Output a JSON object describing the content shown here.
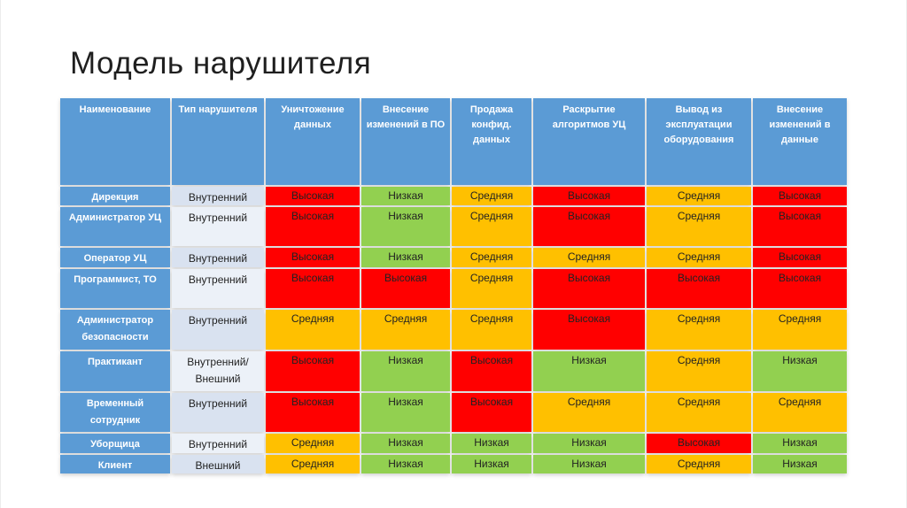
{
  "slide": {
    "title": "Модель нарушителя"
  },
  "table": {
    "columns": [
      "Наименование",
      "Тип нарушителя",
      "Уничтожение данных",
      "Внесение изменений в ПО",
      "Продажа конфид. данных",
      "Раскрытие алгоритмов УЦ",
      "Вывод из эксплуатации оборудования",
      "Внесение изменений в данные"
    ],
    "rows": [
      {
        "name": "Дирекция",
        "type": "Внутренний",
        "values": [
          "Высокая",
          "Низкая",
          "Средняя",
          "Высокая",
          "Средняя",
          "Высокая"
        ]
      },
      {
        "name": "Администратор УЦ",
        "type": "Внутренний",
        "values": [
          "Высокая",
          "Низкая",
          "Средняя",
          "Высокая",
          "Средняя",
          "Высокая"
        ]
      },
      {
        "name": "Оператор УЦ",
        "type": "Внутренний",
        "values": [
          "Высокая",
          "Низкая",
          "Средняя",
          "Средняя",
          "Средняя",
          "Высокая"
        ]
      },
      {
        "name": "Программист, ТО",
        "type": "Внутренний",
        "values": [
          "Высокая",
          "Высокая",
          "Средняя",
          "Высокая",
          "Высокая",
          "Высокая"
        ]
      },
      {
        "name": "Администратор безопасности",
        "type": "Внутренний",
        "values": [
          "Средняя",
          "Средняя",
          "Средняя",
          "Высокая",
          "Средняя",
          "Средняя"
        ]
      },
      {
        "name": "Практикант",
        "type": "Внутренний/ Внешний",
        "values": [
          "Высокая",
          "Низкая",
          "Высокая",
          "Низкая",
          "Средняя",
          "Низкая"
        ]
      },
      {
        "name": "Временный сотрудник",
        "type": "Внутренний",
        "values": [
          "Высокая",
          "Низкая",
          "Высокая",
          "Средняя",
          "Средняя",
          "Средняя"
        ]
      },
      {
        "name": "Уборщица",
        "type": "Внутренний",
        "values": [
          "Средняя",
          "Низкая",
          "Низкая",
          "Низкая",
          "Высокая",
          "Низкая"
        ]
      },
      {
        "name": "Клиент",
        "type": "Внешний",
        "values": [
          "Средняя",
          "Низкая",
          "Низкая",
          "Низкая",
          "Средняя",
          "Низкая"
        ]
      }
    ]
  },
  "legend_colors": {
    "Высокая": "#FF0000",
    "Средняя": "#FFC000",
    "Низкая": "#92D050"
  },
  "theme": {
    "header_blue": "#5B9BD5",
    "band_odd": "#D9E2F0",
    "band_even": "#ECF1F8"
  }
}
